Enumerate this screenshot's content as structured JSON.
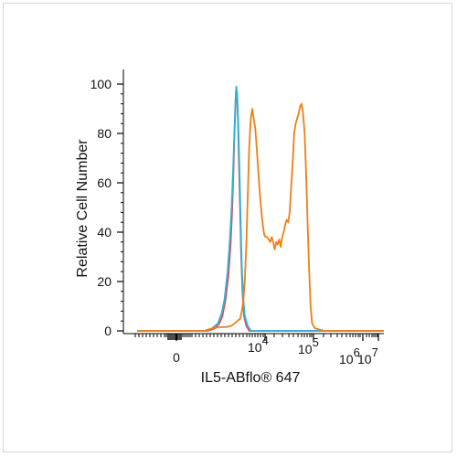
{
  "chart_data": {
    "type": "line",
    "title": "",
    "xlabel": "IL5-ABflo",
    "xlabel_suffix": "® 647",
    "ylabel": "Relative Cell Number",
    "ylim": [
      0,
      100
    ],
    "yticks": [
      0,
      20,
      40,
      60,
      80,
      100
    ],
    "xticks": [
      {
        "base": "0",
        "exp": ""
      },
      {
        "base": "10",
        "exp": "4"
      },
      {
        "base": "10",
        "exp": "5"
      },
      {
        "base": "10",
        "exp": "6"
      },
      {
        "base": "10",
        "exp": "7"
      }
    ],
    "xscale": "biexponential",
    "xlim_display": [
      -0.65,
      1.0
    ],
    "series": [
      {
        "color": "#e8474c",
        "points": [
          [
            -0.65,
            0
          ],
          [
            -0.18,
            0
          ],
          [
            -0.13,
            1
          ],
          [
            -0.1,
            3
          ],
          [
            -0.08,
            6
          ],
          [
            -0.06,
            12
          ],
          [
            -0.04,
            22
          ],
          [
            -0.025,
            35
          ],
          [
            -0.015,
            48
          ],
          [
            -0.007,
            62
          ],
          [
            0.0,
            78
          ],
          [
            0.008,
            92
          ],
          [
            0.013,
            98
          ],
          [
            0.018,
            96
          ],
          [
            0.024,
            86
          ],
          [
            0.03,
            70
          ],
          [
            0.038,
            50
          ],
          [
            0.046,
            30
          ],
          [
            0.055,
            15
          ],
          [
            0.065,
            6
          ],
          [
            0.08,
            2
          ],
          [
            0.1,
            0
          ],
          [
            1.0,
            0
          ]
        ]
      },
      {
        "color": "#2bb4d6",
        "points": [
          [
            -0.65,
            0
          ],
          [
            -0.2,
            0
          ],
          [
            -0.15,
            1
          ],
          [
            -0.11,
            3
          ],
          [
            -0.085,
            7
          ],
          [
            -0.065,
            13
          ],
          [
            -0.045,
            24
          ],
          [
            -0.03,
            37
          ],
          [
            -0.018,
            50
          ],
          [
            -0.009,
            64
          ],
          [
            0.0,
            80
          ],
          [
            0.008,
            94
          ],
          [
            0.013,
            99
          ],
          [
            0.019,
            96
          ],
          [
            0.026,
            85
          ],
          [
            0.034,
            67
          ],
          [
            0.042,
            46
          ],
          [
            0.05,
            27
          ],
          [
            0.06,
            13
          ],
          [
            0.07,
            6
          ],
          [
            0.09,
            2
          ],
          [
            0.11,
            0
          ],
          [
            1.0,
            0
          ]
        ]
      },
      {
        "color": "#f07f14",
        "points": [
          [
            -0.65,
            0
          ],
          [
            -0.2,
            0
          ],
          [
            -0.15,
            1
          ],
          [
            -0.1,
            1.5
          ],
          [
            -0.06,
            1.5
          ],
          [
            -0.02,
            2
          ],
          [
            0.0,
            3
          ],
          [
            0.02,
            4
          ],
          [
            0.04,
            5
          ],
          [
            0.05,
            8
          ],
          [
            0.06,
            12
          ],
          [
            0.07,
            20
          ],
          [
            0.08,
            35
          ],
          [
            0.09,
            55
          ],
          [
            0.1,
            75
          ],
          [
            0.11,
            86
          ],
          [
            0.12,
            90
          ],
          [
            0.13,
            86
          ],
          [
            0.14,
            82
          ],
          [
            0.15,
            74
          ],
          [
            0.16,
            65
          ],
          [
            0.17,
            56
          ],
          [
            0.18,
            49
          ],
          [
            0.19,
            43
          ],
          [
            0.2,
            39
          ],
          [
            0.21,
            38
          ],
          [
            0.22,
            38
          ],
          [
            0.23,
            37
          ],
          [
            0.24,
            36
          ],
          [
            0.25,
            38
          ],
          [
            0.26,
            36
          ],
          [
            0.27,
            33
          ],
          [
            0.28,
            36
          ],
          [
            0.29,
            35
          ],
          [
            0.3,
            37
          ],
          [
            0.31,
            34
          ],
          [
            0.32,
            38
          ],
          [
            0.33,
            40
          ],
          [
            0.34,
            43
          ],
          [
            0.35,
            45
          ],
          [
            0.36,
            44
          ],
          [
            0.37,
            48
          ],
          [
            0.38,
            58
          ],
          [
            0.39,
            68
          ],
          [
            0.4,
            80
          ],
          [
            0.41,
            84
          ],
          [
            0.42,
            86
          ],
          [
            0.43,
            88
          ],
          [
            0.44,
            91
          ],
          [
            0.45,
            92
          ],
          [
            0.46,
            88
          ],
          [
            0.47,
            80
          ],
          [
            0.48,
            64
          ],
          [
            0.49,
            44
          ],
          [
            0.5,
            25
          ],
          [
            0.51,
            10
          ],
          [
            0.52,
            3
          ],
          [
            0.54,
            1
          ],
          [
            0.6,
            0
          ],
          [
            1.0,
            0
          ]
        ]
      }
    ]
  }
}
